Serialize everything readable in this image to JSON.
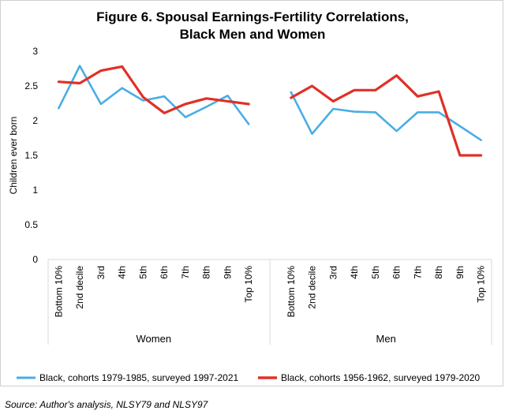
{
  "title_line1": "Figure 6. Spousal Earnings-Fertility Correlations,",
  "title_line2": "Black Men and Women",
  "source": "Source: Author's analysis, NLSY79 and NLSY97",
  "colors": {
    "series1": "#4aade5",
    "series2": "#e03027"
  },
  "chart_data": {
    "type": "line",
    "ylabel": "Children ever born",
    "ylim": [
      0,
      3
    ],
    "yticks": [
      "0",
      "0.5",
      "1",
      "1.5",
      "2",
      "2.5",
      "3"
    ],
    "grid": false,
    "legend": "bottom",
    "categories": [
      "Bottom 10%",
      "2nd decile",
      "3rd",
      "4th",
      "5th",
      "6th",
      "7th",
      "8th",
      "9th",
      "Top 10%"
    ],
    "groups": [
      {
        "label": "Women",
        "series": [
          {
            "name": "Black, cohorts 1979-1985, surveyed 1997-2021",
            "values": [
              2.18,
              2.79,
              2.24,
              2.47,
              2.29,
              2.35,
              2.05,
              2.2,
              2.36,
              1.95
            ]
          },
          {
            "name": "Black, cohorts 1956-1962, surveyed 1979-2020",
            "values": [
              2.56,
              2.54,
              2.72,
              2.78,
              2.34,
              2.11,
              2.24,
              2.32,
              2.28,
              2.24
            ]
          }
        ]
      },
      {
        "label": "Men",
        "series": [
          {
            "name": "Black, cohorts 1979-1985, surveyed 1997-2021",
            "values": [
              2.41,
              1.81,
              2.17,
              2.13,
              2.12,
              1.85,
              2.12,
              2.12,
              1.92,
              1.72
            ]
          },
          {
            "name": "Black, cohorts 1956-1962, surveyed 1979-2020",
            "values": [
              2.33,
              2.5,
              2.28,
              2.44,
              2.44,
              2.65,
              2.35,
              2.42,
              1.5,
              1.5
            ]
          }
        ]
      }
    ]
  }
}
